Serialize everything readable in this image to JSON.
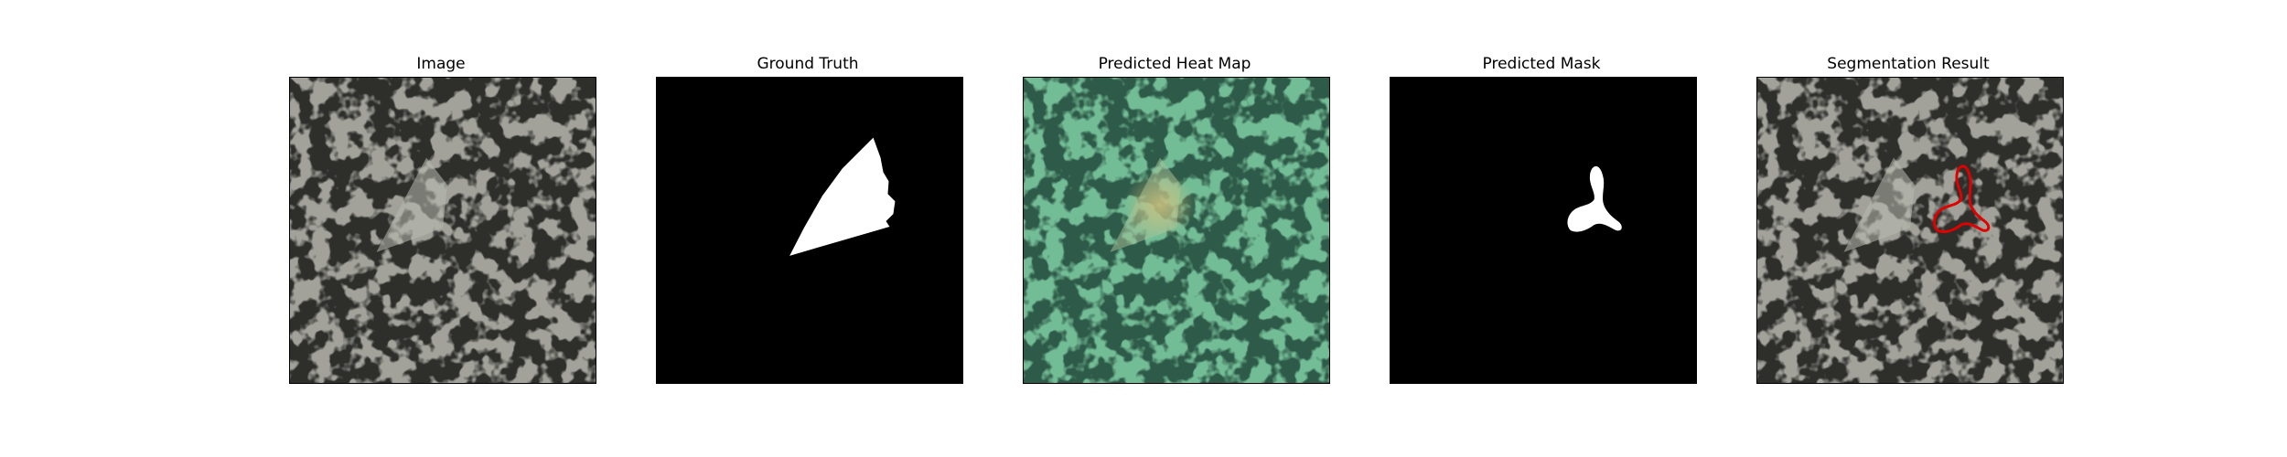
{
  "figure": {
    "panels": [
      {
        "title": "Image",
        "content": "textured-surface"
      },
      {
        "title": "Ground Truth",
        "content": "binary-mask"
      },
      {
        "title": "Predicted Heat Map",
        "content": "heatmap-overlay"
      },
      {
        "title": "Predicted Mask",
        "content": "binary-mask"
      },
      {
        "title": "Segmentation Result",
        "content": "contour-overlay"
      }
    ]
  },
  "colors": {
    "background": "#ffffff",
    "mask_background": "#000000",
    "mask_foreground": "#ffffff",
    "texture_base": "#9a9a94",
    "texture_dark": "#3a3a38",
    "heatmap_tint": "#5fbf8f",
    "defect_highlight": "#c8c088",
    "contour": "#e00000"
  }
}
